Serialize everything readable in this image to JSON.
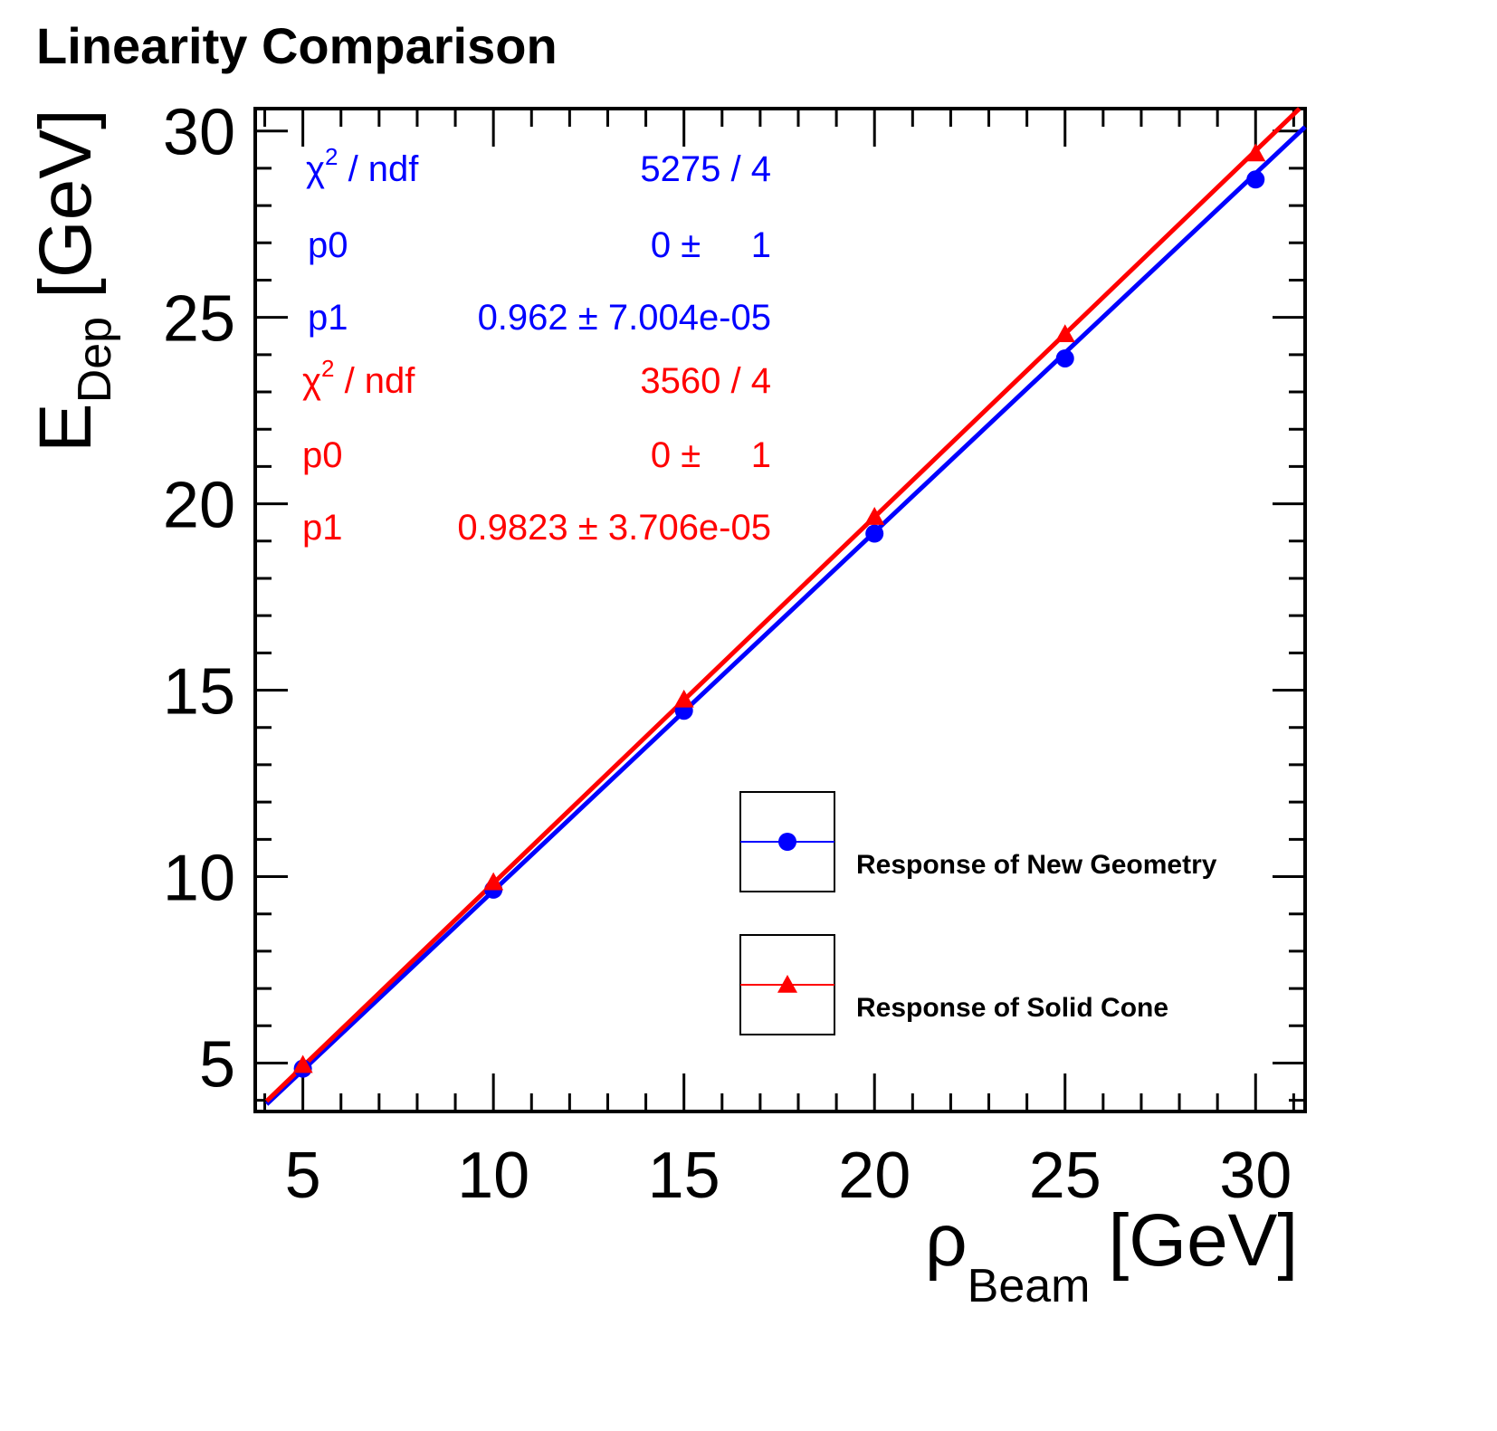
{
  "chart_data": {
    "type": "scatter",
    "title": "Linearity Comparison",
    "xlabel": {
      "main": "ρ",
      "sub": "Beam",
      "unit": "[GeV]"
    },
    "ylabel": {
      "main": "E",
      "sub": "Dep",
      "unit": "[GeV]"
    },
    "xlim": [
      3.75,
      31.3
    ],
    "ylim": [
      3.7,
      30.6
    ],
    "xticks": [
      5,
      10,
      15,
      20,
      25,
      30
    ],
    "yticks": [
      5,
      10,
      15,
      20,
      25,
      30
    ],
    "grid": false,
    "legend_position": "bottom-right",
    "series": [
      {
        "name": "Response of New Geometry",
        "color": "#0000ff",
        "marker": "circle",
        "x": [
          5,
          10,
          15,
          20,
          25,
          30
        ],
        "y": [
          4.85,
          9.65,
          14.45,
          19.2,
          23.9,
          28.7
        ],
        "fit": {
          "p0": 0,
          "p1": 0.962
        },
        "stats": [
          {
            "label": "χ",
            "sup": "2",
            "label_rest": " / ndf",
            "value": "5275 / 4"
          },
          {
            "label": "p0",
            "sup": "",
            "label_rest": "",
            "value": "0 ±     1"
          },
          {
            "label": "p1",
            "sup": "",
            "label_rest": "",
            "value": "0.962 ± 7.004e-05"
          }
        ]
      },
      {
        "name": "Response of Solid Cone",
        "color": "#ff0000",
        "marker": "triangle",
        "x": [
          5,
          10,
          15,
          20,
          25,
          30
        ],
        "y": [
          4.95,
          9.85,
          14.75,
          19.65,
          24.55,
          29.4
        ],
        "fit": {
          "p0": 0,
          "p1": 0.9823
        },
        "stats": [
          {
            "label": "χ",
            "sup": "2",
            "label_rest": " / ndf",
            "value": "3560 / 4"
          },
          {
            "label": "p0",
            "sup": "",
            "label_rest": "",
            "value": "0 ±     1"
          },
          {
            "label": "p1",
            "sup": "",
            "label_rest": "",
            "value": "0.9823 ± 3.706e-05"
          }
        ]
      }
    ]
  }
}
